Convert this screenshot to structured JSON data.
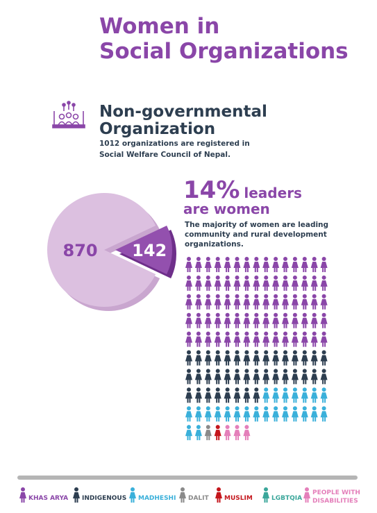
{
  "title": [
    "Women in",
    "Social Organizations"
  ],
  "section": {
    "heading": [
      "Non-governmental",
      "Organization"
    ],
    "text": [
      "1012 organizations are registered in",
      "Social Welfare Council of Nepal."
    ]
  },
  "headline": {
    "value": "14%",
    "text": [
      "leaders",
      "are women"
    ]
  },
  "body": [
    "The majority of women are leading",
    "community and rural development",
    "organizations."
  ],
  "chart_data": {
    "type": "pie",
    "values": [
      870,
      142
    ],
    "colors": [
      "#dcc0e0",
      "#9350ae"
    ],
    "label_colors": [
      "#8a46a8",
      "#ffffff"
    ],
    "exploded": 1
  },
  "pictogram": {
    "columns": 15,
    "groups": [
      {
        "name": "KHAS ARYA",
        "color": "#8a46a8",
        "count": 75
      },
      {
        "name": "INDIGENOUS",
        "color": "#2d3e50",
        "count": 38
      },
      {
        "name": "MADHESHI",
        "color": "#3ab0da",
        "count": 24
      },
      {
        "name": "DALIT",
        "color": "#8a8a8a",
        "count": 1
      },
      {
        "name": "MUSLIM",
        "color": "#c4161c",
        "count": 1
      },
      {
        "name": "LGBTQIA",
        "color": "#3aa69a",
        "count": 0
      },
      {
        "name": "PEOPLE WITH DISABILITIES",
        "color": "#e47fba",
        "count": 3
      }
    ]
  }
}
